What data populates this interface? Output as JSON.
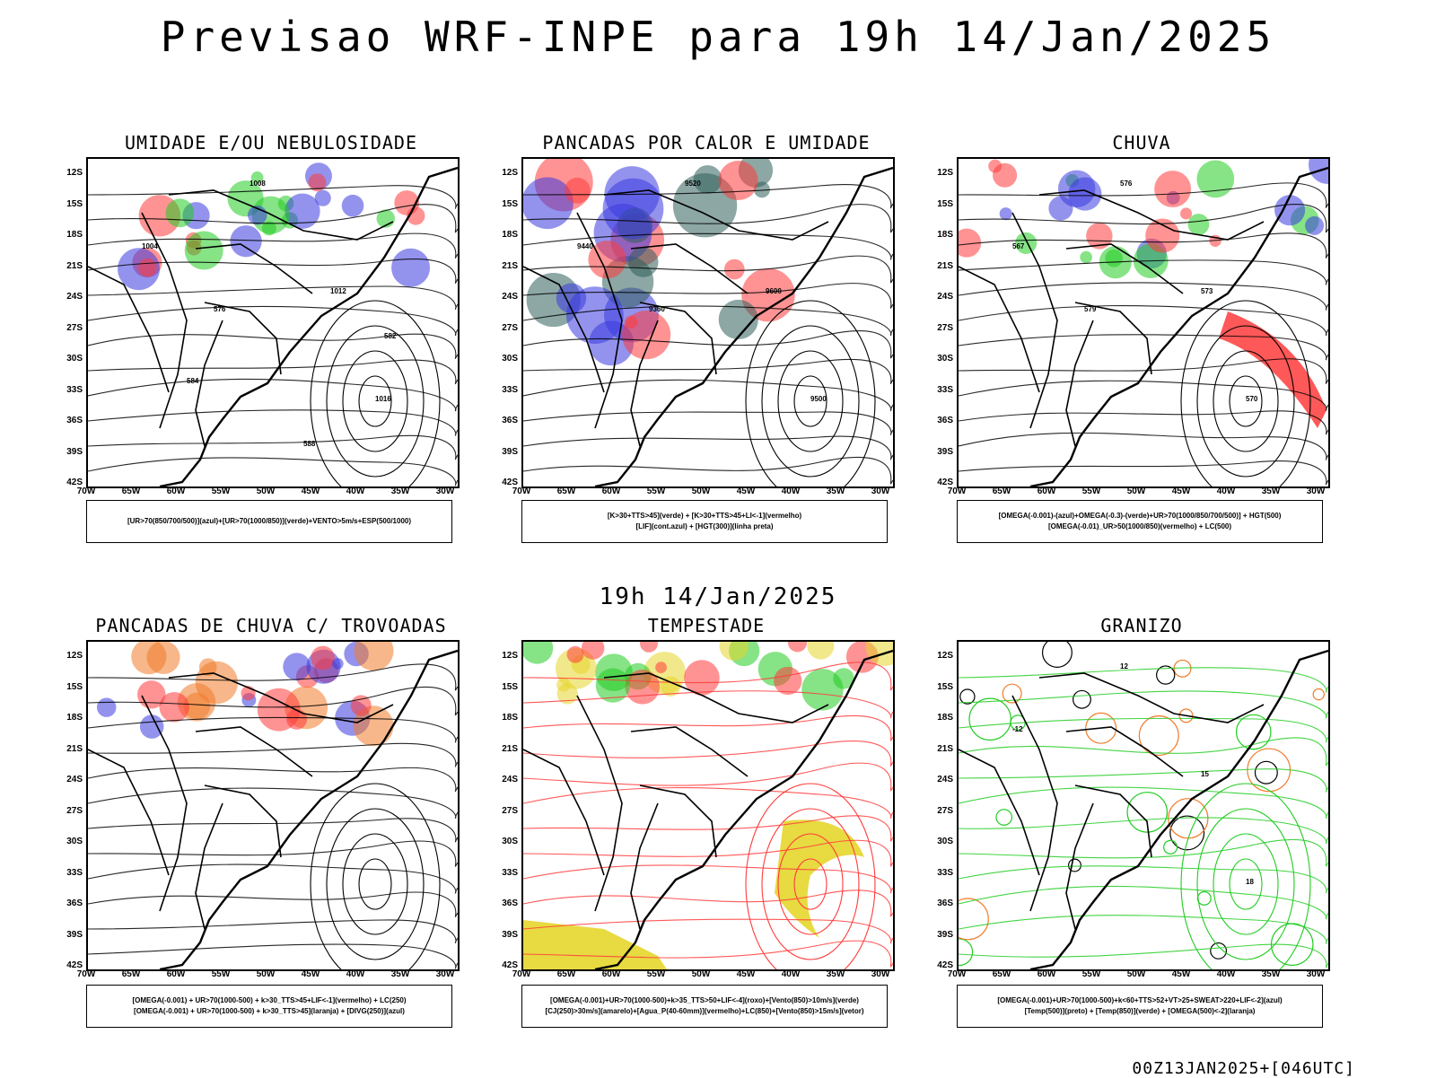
{
  "header": {
    "title": "Previsao WRF-INPE  para 19h 14/Jan/2025",
    "mid_time": "19h 14/Jan/2025",
    "run_id": "00Z13JAN2025+[046UTC]"
  },
  "axes": {
    "lat_labels": [
      "12S",
      "15S",
      "18S",
      "21S",
      "24S",
      "27S",
      "30S",
      "33S",
      "36S",
      "39S",
      "42S"
    ],
    "lon_labels": [
      "70W",
      "65W",
      "60W",
      "55W",
      "50W",
      "45W",
      "40W",
      "35W",
      "30W"
    ]
  },
  "panels": [
    {
      "title": "UMIDADE E/OU NEBULOSIDADE",
      "legend_lines": [
        "[UR>70(850/700/500)](azul)+[UR>70(1000/850)](verde)+VENTO>5m/s+ESP(500/1000)"
      ],
      "contour_labels": [
        "1008",
        "1012",
        "1016",
        "1004",
        "576",
        "582",
        "588",
        "584"
      ],
      "colors": {
        "primary": "#3a3ae0",
        "secondary": "#22cc22",
        "tertiary": "#ff3b3b"
      }
    },
    {
      "title": "PANCADAS POR CALOR E UMIDADE",
      "legend_lines": [
        "[K>30+TTS>45](verde) + [K>30+TTS>45+LI<-1](vermelho)",
        "[LIF](cont.azul) + [HGT(300)](linha preta)"
      ],
      "contour_labels": [
        "9520",
        "9600",
        "9500",
        "9440",
        "9360"
      ],
      "colors": {
        "primary": "#ff3b3b",
        "secondary": "#2f5f5a",
        "tertiary": "#3a3ae0"
      }
    },
    {
      "title": "CHUVA",
      "legend_lines": [
        "[OMEGA(-0.001)-(azul)+OMEGA(-0.3)-(verde)+UR>70(1000/850/700/500)] + HGT(500)",
        "[OMEGA(-0.01)_UR>50(1000/850)(vermelho) + LC(500)"
      ],
      "contour_labels": [
        "576",
        "573",
        "570",
        "567",
        "579"
      ],
      "colors": {
        "primary": "#3a3ae0",
        "secondary": "#22cc22",
        "tertiary": "#ff3b3b"
      }
    },
    {
      "title": "PANCADAS DE CHUVA C/ TROVOADAS",
      "legend_lines": [
        "[OMEGA(-0.001) + UR>70(1000-500) + k>30_TTS>45+LIF<-1](vermelho) + LC(250)",
        "[OMEGA(-0.001) + UR>70(1000-500) + k>30_TTS>45](laranja) + [DIVG(250)](azul)"
      ],
      "contour_labels": [],
      "colors": {
        "primary": "#ff3b3b",
        "secondary": "#f07c2a",
        "tertiary": "#3a3ae0"
      }
    },
    {
      "title": "TEMPESTADE",
      "legend_lines": [
        "[OMEGA(-0.001)+UR>70(1000-500)+k>35_TTS>50+LIF<-4](roxo)+[Vento(850)>10m/s](verde)",
        "[CJ(250)>30m/s](amarelo)+[Agua_P(40-60mm)](vermelho)+LC(850)+[Vento(850)>15m/s](vetor)"
      ],
      "contour_labels": [],
      "colors": {
        "primary": "#ff3b3b",
        "secondary": "#e5d62c",
        "tertiary": "#22cc22"
      }
    },
    {
      "title": "GRANIZO",
      "legend_lines": [
        "[OMEGA(-0.001)+UR>70(1000-500)+k<60+TTS>52+VT>25+SWEAT>220+LIF<-2](azul)",
        "[Temp(500)](preto) + [Temp(850)](verde) + [OMEGA(500)<-2](laranja)"
      ],
      "contour_labels": [
        "12",
        "15",
        "18",
        "-12"
      ],
      "colors": {
        "primary": "#22cc22",
        "secondary": "#f07c2a",
        "tertiary": "#000000"
      }
    }
  ]
}
